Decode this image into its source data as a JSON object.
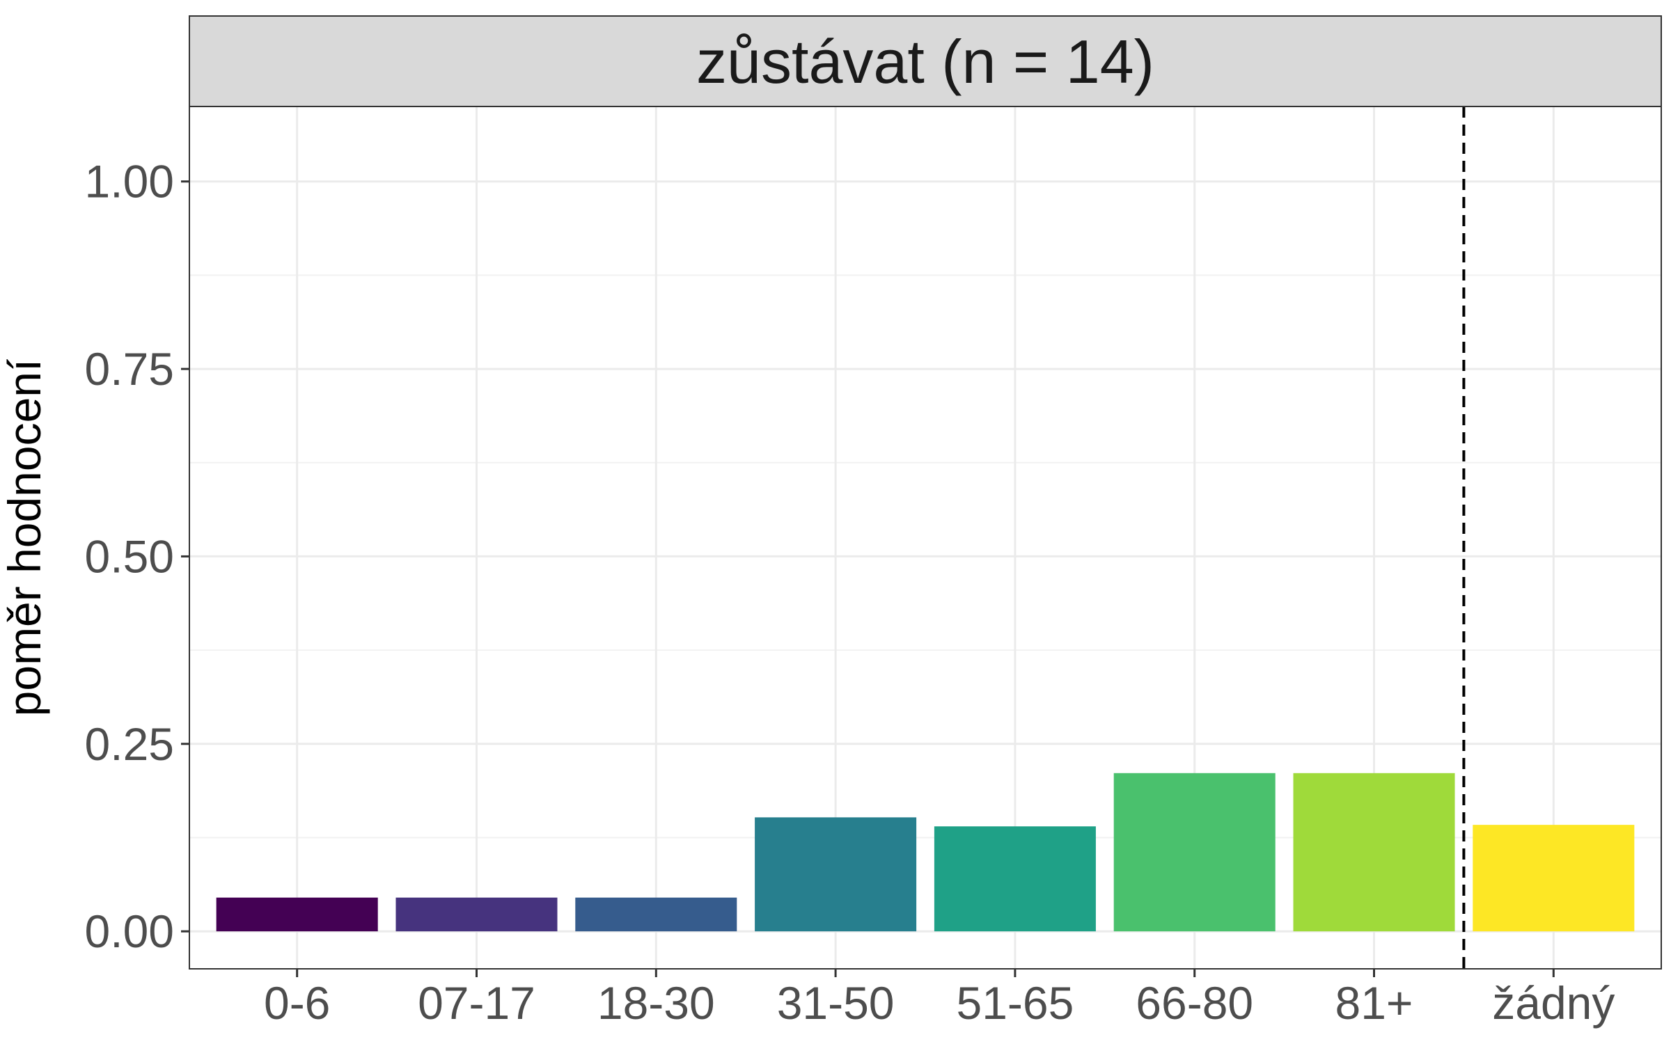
{
  "chart_data": {
    "type": "bar",
    "panel_title": "zůstávat (n = 14)",
    "xlabel": "",
    "ylabel": "poměr hodnocení",
    "categories": [
      "0-6",
      "07-17",
      "18-30",
      "31-50",
      "51-65",
      "66-80",
      "81+",
      "žádný"
    ],
    "values": [
      0.045,
      0.045,
      0.045,
      0.152,
      0.14,
      0.211,
      0.211,
      0.142
    ],
    "colors": [
      "#440154",
      "#46337e",
      "#365c8d",
      "#277f8e",
      "#1fa187",
      "#4ac16d",
      "#9fda3a",
      "#fde725"
    ],
    "ylim": [
      -0.05,
      1.1
    ],
    "yticks": [
      0,
      0.25,
      0.5,
      0.75,
      1.0
    ],
    "ytick_labels": [
      "0.00",
      "0.25",
      "0.50",
      "0.75",
      "1.00"
    ],
    "separator_after_category": "81+",
    "grid": true,
    "legend": "none"
  }
}
